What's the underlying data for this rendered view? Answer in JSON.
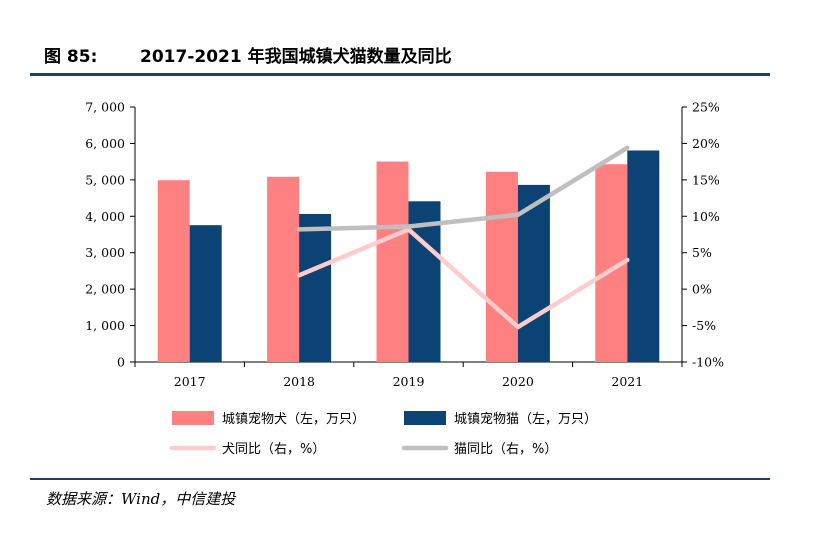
{
  "figure": {
    "number": "图 85:",
    "title": "2017-2021 年我国城镇犬猫数量及同比",
    "source": "数据来源：Wind，中信建投"
  },
  "chart_data": {
    "type": "bar",
    "categories": [
      "2017",
      "2018",
      "2019",
      "2020",
      "2021"
    ],
    "left_axis": {
      "ylim": [
        0,
        7000
      ],
      "ticks": [
        0,
        1000,
        2000,
        3000,
        4000,
        5000,
        6000,
        7000
      ],
      "tick_labels": [
        "0",
        "1, 000",
        "2, 000",
        "3, 000",
        "4, 000",
        "5, 000",
        "6, 000",
        "7, 000"
      ]
    },
    "right_axis": {
      "ylim": [
        -10,
        25
      ],
      "ticks": [
        -10,
        -5,
        0,
        5,
        10,
        15,
        20,
        25
      ],
      "tick_labels": [
        "-10%",
        "-5%",
        "0%",
        "5%",
        "10%",
        "15%",
        "20%",
        "25%"
      ]
    },
    "series": [
      {
        "name": "城镇宠物犬（左，万只）",
        "type": "bar",
        "axis": "left",
        "color": "#ff8080",
        "values": [
          4990,
          5085,
          5503,
          5222,
          5429
        ]
      },
      {
        "name": "城镇宠物猫（左，万只）",
        "type": "bar",
        "axis": "left",
        "color": "#0b4474",
        "values": [
          3756,
          4064,
          4412,
          4862,
          5806
        ]
      },
      {
        "name": "犬同比（右，%）",
        "type": "line",
        "axis": "right",
        "color": "#ffcccc",
        "values": [
          null,
          1.9,
          8.2,
          -5.2,
          4.0
        ]
      },
      {
        "name": "猫同比（右，%）",
        "type": "line",
        "axis": "right",
        "color": "#bfbfbf",
        "values": [
          null,
          8.2,
          8.6,
          10.2,
          19.4
        ]
      }
    ],
    "legend": "bottom",
    "grid": false
  }
}
